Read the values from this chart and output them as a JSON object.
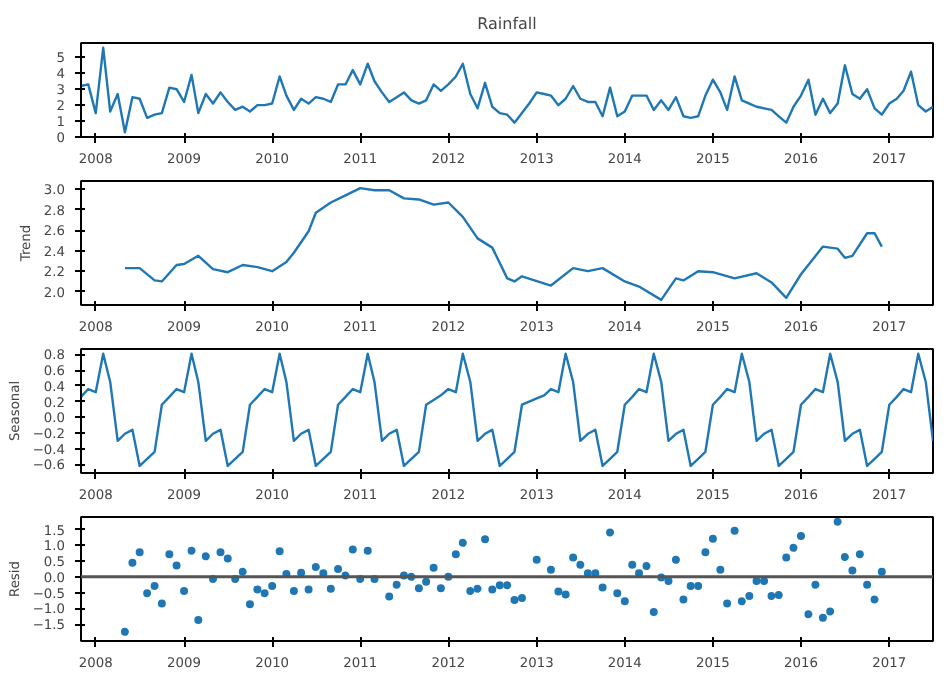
{
  "chart_data": [
    {
      "type": "line",
      "title": "Rainfall",
      "xlim": [
        "2007-11",
        "2017-07"
      ],
      "xticks": [
        "2008",
        "2009",
        "2010",
        "2011",
        "2012",
        "2013",
        "2014",
        "2015",
        "2016",
        "2017"
      ],
      "ylim": [
        0,
        5.9
      ],
      "yticks": [
        0,
        1,
        2,
        3,
        4,
        5
      ],
      "grid": false,
      "x": [
        "2007-11",
        "2007-12",
        "2008-01",
        "2008-02",
        "2008-03",
        "2008-04",
        "2008-05",
        "2008-06",
        "2008-07",
        "2008-08",
        "2008-09",
        "2008-10",
        "2008-11",
        "2008-12",
        "2009-01",
        "2009-02",
        "2009-03",
        "2009-04",
        "2009-05",
        "2009-06",
        "2009-07",
        "2009-08",
        "2009-09",
        "2009-10",
        "2009-11",
        "2009-12",
        "2010-01",
        "2010-02",
        "2010-03",
        "2010-04",
        "2010-05",
        "2010-06",
        "2010-07",
        "2010-08",
        "2010-09",
        "2010-10",
        "2010-11",
        "2010-12",
        "2011-01",
        "2011-02",
        "2011-03",
        "2011-04",
        "2011-05",
        "2011-06",
        "2011-07",
        "2011-08",
        "2011-09",
        "2011-10",
        "2011-11",
        "2011-12",
        "2012-01",
        "2012-02",
        "2012-03",
        "2012-04",
        "2012-05",
        "2012-06",
        "2012-07",
        "2012-08",
        "2012-09",
        "2012-10",
        "2012-11",
        "2012-12",
        "2013-01",
        "2013-02",
        "2013-03",
        "2013-04",
        "2013-05",
        "2013-06",
        "2013-07",
        "2013-08",
        "2013-09",
        "2013-10",
        "2013-11",
        "2013-12",
        "2014-01",
        "2014-02",
        "2014-03",
        "2014-04",
        "2014-05",
        "2014-06",
        "2014-07",
        "2014-08",
        "2014-09",
        "2014-10",
        "2014-11",
        "2014-12",
        "2015-01",
        "2015-02",
        "2015-03",
        "2015-04",
        "2015-05",
        "2015-06",
        "2015-07",
        "2015-08",
        "2015-09",
        "2015-10",
        "2015-11",
        "2015-12",
        "2016-01",
        "2016-02",
        "2016-03",
        "2016-04",
        "2016-05",
        "2016-06",
        "2016-07",
        "2016-08",
        "2016-09",
        "2016-10",
        "2016-11",
        "2016-12",
        "2017-01",
        "2017-02",
        "2017-03",
        "2017-04",
        "2017-05",
        "2017-06",
        "2017-07"
      ],
      "series": [
        {
          "color": "#1f77b4",
          "values": [
            3.2,
            3.3,
            1.5,
            5.6,
            1.6,
            2.7,
            0.3,
            2.5,
            2.4,
            1.2,
            1.4,
            1.5,
            3.1,
            3.0,
            2.2,
            3.9,
            1.5,
            2.7,
            2.1,
            2.8,
            2.2,
            1.7,
            1.9,
            1.6,
            2.0,
            2.0,
            2.1,
            3.8,
            2.6,
            1.7,
            2.4,
            2.1,
            2.5,
            2.4,
            2.2,
            3.3,
            3.3,
            4.2,
            3.3,
            4.6,
            3.5,
            2.8,
            2.2,
            2.5,
            2.8,
            2.3,
            2.1,
            2.3,
            3.3,
            2.9,
            3.3,
            3.8,
            4.6,
            2.7,
            1.8,
            3.4,
            1.9,
            1.5,
            1.4,
            0.9,
            1.5,
            2.1,
            2.8,
            2.7,
            2.6,
            2.0,
            2.4,
            3.2,
            2.4,
            2.2,
            2.2,
            1.3,
            3.1,
            1.3,
            1.6,
            2.6,
            2.6,
            2.6,
            1.7,
            2.3,
            1.7,
            2.5,
            1.3,
            1.2,
            1.3,
            2.6,
            3.6,
            2.8,
            1.7,
            3.8,
            2.3,
            2.1,
            1.9,
            1.8,
            1.7,
            1.3,
            0.9,
            1.9,
            2.6,
            3.6,
            1.4,
            2.4,
            1.5,
            2.1,
            4.5,
            2.7,
            2.4,
            3.0,
            1.8,
            1.4,
            2.1,
            2.4,
            2.9,
            4.1,
            2.0,
            1.6,
            1.9
          ]
        }
      ]
    },
    {
      "type": "line",
      "ylabel": "Trend",
      "xlim": [
        "2007-11",
        "2017-07"
      ],
      "xticks": [
        "2008",
        "2009",
        "2010",
        "2011",
        "2012",
        "2013",
        "2014",
        "2015",
        "2016",
        "2017"
      ],
      "ylim": [
        1.87,
        3.08
      ],
      "yticks": [
        {
          "value": 2.0,
          "label": "2.0"
        },
        {
          "value": 2.2,
          "label": "2.2"
        },
        {
          "value": 2.4,
          "label": "2.4"
        },
        {
          "value": 2.6,
          "label": "2.6"
        },
        {
          "value": 2.8,
          "label": "2.8"
        },
        {
          "value": 3.0,
          "label": "3.0"
        }
      ],
      "grid": false,
      "x": [
        "2008-05",
        "2008-07",
        "2008-09",
        "2008-10",
        "2008-12",
        "2009-01",
        "2009-03",
        "2009-05",
        "2009-07",
        "2009-09",
        "2009-11",
        "2010-01",
        "2010-03",
        "2010-04",
        "2010-06",
        "2010-07",
        "2010-09",
        "2010-11",
        "2011-01",
        "2011-03",
        "2011-05",
        "2011-07",
        "2011-09",
        "2011-11",
        "2012-01",
        "2012-03",
        "2012-05",
        "2012-07",
        "2012-09",
        "2012-10",
        "2012-11",
        "2013-03",
        "2013-06",
        "2013-08",
        "2013-10",
        "2014-01",
        "2014-03",
        "2014-06",
        "2014-08",
        "2014-09",
        "2014-11",
        "2015-01",
        "2015-04",
        "2015-07",
        "2015-09",
        "2015-11",
        "2016-01",
        "2016-04",
        "2016-06",
        "2016-07",
        "2016-08",
        "2016-10",
        "2016-11",
        "2016-12"
      ],
      "series": [
        {
          "color": "#1f77b4",
          "values": [
            2.23,
            2.23,
            2.11,
            2.1,
            2.26,
            2.27,
            2.35,
            2.22,
            2.19,
            2.26,
            2.24,
            2.2,
            2.29,
            2.38,
            2.59,
            2.77,
            2.87,
            2.94,
            3.01,
            2.99,
            2.99,
            2.91,
            2.9,
            2.85,
            2.87,
            2.73,
            2.52,
            2.43,
            2.13,
            2.1,
            2.15,
            2.06,
            2.23,
            2.2,
            2.23,
            2.1,
            2.05,
            1.92,
            2.13,
            2.11,
            2.2,
            2.19,
            2.13,
            2.18,
            2.09,
            1.94,
            2.17,
            2.44,
            2.42,
            2.33,
            2.35,
            2.57,
            2.57,
            2.44
          ]
        }
      ]
    },
    {
      "type": "line",
      "ylabel": "Seasonal",
      "xlim": [
        "2007-11",
        "2017-07"
      ],
      "xticks": [
        "2008",
        "2009",
        "2010",
        "2011",
        "2012",
        "2013",
        "2014",
        "2015",
        "2016",
        "2017"
      ],
      "ylim": [
        -0.71,
        0.87
      ],
      "yticks": [
        {
          "value": -0.6,
          "label": "−0.6"
        },
        {
          "value": -0.4,
          "label": "−0.4"
        },
        {
          "value": -0.2,
          "label": "−0.2"
        },
        {
          "value": 0.0,
          "label": "0.0"
        },
        {
          "value": 0.2,
          "label": "0.2"
        },
        {
          "value": 0.4,
          "label": "0.4"
        },
        {
          "value": 0.6,
          "label": "0.6"
        },
        {
          "value": 0.8,
          "label": "0.8"
        }
      ],
      "grid": false,
      "x": [
        "2007-11",
        "2007-12",
        "2008-01",
        "2008-02",
        "2008-03",
        "2008-04",
        "2008-05",
        "2008-06",
        "2008-07",
        "2008-08",
        "2008-09",
        "2008-10",
        "2008-11",
        "2008-12",
        "2009-01",
        "2009-02",
        "2009-03",
        "2009-04",
        "2009-05",
        "2009-06",
        "2009-07",
        "2009-08",
        "2009-09",
        "2009-10",
        "2009-11",
        "2009-12",
        "2010-01",
        "2010-02",
        "2010-03",
        "2010-04",
        "2010-05",
        "2010-06",
        "2010-07",
        "2010-08",
        "2010-09",
        "2010-10",
        "2010-11",
        "2010-12",
        "2011-01",
        "2011-02",
        "2011-03",
        "2011-04",
        "2011-05",
        "2011-06",
        "2011-07",
        "2011-08",
        "2011-09",
        "2011-10",
        "2011-11",
        "2011-12",
        "2012-01",
        "2012-02",
        "2012-03",
        "2012-04",
        "2012-05",
        "2012-06",
        "2012-07",
        "2012-08",
        "2012-09",
        "2012-10",
        "2012-11",
        "2012-12",
        "2013-01",
        "2013-02",
        "2013-03",
        "2013-04",
        "2013-05",
        "2013-06",
        "2013-07",
        "2013-08",
        "2013-09",
        "2013-10",
        "2013-11",
        "2013-12",
        "2014-01",
        "2014-02",
        "2014-03",
        "2014-04",
        "2014-05",
        "2014-06",
        "2014-07",
        "2014-08",
        "2014-09",
        "2014-10",
        "2014-11",
        "2014-12",
        "2015-01",
        "2015-02",
        "2015-03",
        "2015-04",
        "2015-05",
        "2015-06",
        "2015-07",
        "2015-08",
        "2015-09",
        "2015-10",
        "2015-11",
        "2015-12",
        "2016-01",
        "2016-02",
        "2016-03",
        "2016-04",
        "2016-05",
        "2016-06",
        "2016-07",
        "2016-08",
        "2016-09",
        "2016-10",
        "2016-11",
        "2016-12",
        "2017-01",
        "2017-02",
        "2017-03",
        "2017-04",
        "2017-05",
        "2017-06",
        "2017-07"
      ],
      "series": [
        {
          "color": "#1f77b4",
          "values": [
            0.26,
            0.36,
            0.32,
            0.81,
            0.45,
            -0.3,
            -0.21,
            -0.16,
            -0.62,
            -0.53,
            -0.44,
            0.16,
            0.26,
            0.36,
            0.32,
            0.81,
            0.45,
            -0.3,
            -0.21,
            -0.16,
            -0.62,
            -0.53,
            -0.44,
            0.16,
            0.26,
            0.36,
            0.32,
            0.81,
            0.45,
            -0.3,
            -0.21,
            -0.16,
            -0.62,
            -0.53,
            -0.44,
            0.16,
            0.26,
            0.36,
            0.32,
            0.81,
            0.45,
            -0.3,
            -0.21,
            -0.16,
            -0.62,
            -0.53,
            -0.44,
            0.16,
            0.22,
            0.28,
            0.36,
            0.32,
            0.81,
            0.45,
            -0.3,
            -0.21,
            -0.16,
            -0.62,
            -0.53,
            -0.44,
            0.16,
            0.2,
            0.24,
            0.28,
            0.36,
            0.32,
            0.81,
            0.45,
            -0.3,
            -0.21,
            -0.16,
            -0.62,
            -0.53,
            -0.44,
            0.16,
            0.26,
            0.36,
            0.32,
            0.81,
            0.45,
            -0.3,
            -0.21,
            -0.16,
            -0.62,
            -0.53,
            -0.44,
            0.16,
            0.26,
            0.36,
            0.32,
            0.81,
            0.45,
            -0.3,
            -0.21,
            -0.16,
            -0.62,
            -0.53,
            -0.44,
            0.16,
            0.26,
            0.36,
            0.32,
            0.81,
            0.45,
            -0.3,
            -0.21,
            -0.16,
            -0.62,
            -0.53,
            -0.44,
            0.16,
            0.26,
            0.36,
            0.32,
            0.81,
            0.45,
            -0.3
          ]
        }
      ]
    },
    {
      "type": "scatter",
      "ylabel": "Resid",
      "marker": "circle",
      "xlim": [
        "2007-11",
        "2017-07"
      ],
      "xticks": [
        "2008",
        "2009",
        "2010",
        "2011",
        "2012",
        "2013",
        "2014",
        "2015",
        "2016",
        "2017"
      ],
      "ylim": [
        -2.04,
        1.9
      ],
      "yticks": [
        {
          "value": -1.5,
          "label": "−1.5"
        },
        {
          "value": -1.0,
          "label": "−1.0"
        },
        {
          "value": -0.5,
          "label": "−0.5"
        },
        {
          "value": 0.0,
          "label": "0.0"
        },
        {
          "value": 0.5,
          "label": "0.5"
        },
        {
          "value": 1.0,
          "label": "1.0"
        },
        {
          "value": 1.5,
          "label": "1.5"
        }
      ],
      "grid": false,
      "ref_lines": [
        {
          "axis": "y",
          "value": 0,
          "color": "#555555"
        }
      ],
      "x": [
        "2008-05",
        "2008-06",
        "2008-07",
        "2008-08",
        "2008-09",
        "2008-10",
        "2008-11",
        "2008-12",
        "2009-01",
        "2009-02",
        "2009-03",
        "2009-04",
        "2009-05",
        "2009-06",
        "2009-07",
        "2009-08",
        "2009-09",
        "2009-10",
        "2009-11",
        "2009-12",
        "2010-01",
        "2010-02",
        "2010-03",
        "2010-04",
        "2010-05",
        "2010-06",
        "2010-07",
        "2010-08",
        "2010-09",
        "2010-10",
        "2010-11",
        "2010-12",
        "2011-01",
        "2011-02",
        "2011-03",
        "2011-05",
        "2011-06",
        "2011-07",
        "2011-08",
        "2011-09",
        "2011-10",
        "2011-11",
        "2011-12",
        "2012-01",
        "2012-02",
        "2012-03",
        "2012-04",
        "2012-05",
        "2012-06",
        "2012-07",
        "2012-08",
        "2012-09",
        "2012-10",
        "2012-11",
        "2013-01",
        "2013-03",
        "2013-04",
        "2013-05",
        "2013-06",
        "2013-07",
        "2013-08",
        "2013-09",
        "2013-10",
        "2013-11",
        "2013-12",
        "2014-01",
        "2014-02",
        "2014-03",
        "2014-04",
        "2014-05",
        "2014-06",
        "2014-07",
        "2014-08",
        "2014-09",
        "2014-10",
        "2014-11",
        "2014-12",
        "2015-01",
        "2015-02",
        "2015-03",
        "2015-04",
        "2015-05",
        "2015-06",
        "2015-07",
        "2015-08",
        "2015-09",
        "2015-10",
        "2015-11",
        "2015-12",
        "2016-01",
        "2016-02",
        "2016-03",
        "2016-04",
        "2016-05",
        "2016-06",
        "2016-07",
        "2016-08",
        "2016-09",
        "2016-10",
        "2016-11",
        "2016-12"
      ],
      "series": [
        {
          "color": "#1f77b4",
          "values": [
            -1.75,
            0.45,
            0.78,
            -0.52,
            -0.29,
            -0.85,
            0.72,
            0.36,
            -0.45,
            0.83,
            -1.37,
            0.65,
            -0.07,
            0.78,
            0.58,
            -0.07,
            0.16,
            -0.87,
            -0.4,
            -0.52,
            -0.29,
            0.81,
            0.09,
            -0.45,
            0.13,
            -0.4,
            0.31,
            0.11,
            -0.38,
            0.25,
            0.04,
            0.87,
            -0.07,
            0.83,
            -0.07,
            -0.63,
            -0.25,
            0.04,
            0.0,
            -0.36,
            -0.16,
            0.29,
            -0.36,
            0.0,
            0.72,
            1.08,
            -0.45,
            -0.38,
            1.19,
            -0.4,
            -0.27,
            -0.27,
            -0.74,
            -0.67,
            0.54,
            0.22,
            -0.47,
            -0.56,
            0.61,
            0.38,
            0.11,
            0.11,
            -0.34,
            1.41,
            -0.52,
            -0.78,
            0.38,
            0.11,
            0.34,
            -1.12,
            -0.02,
            -0.13,
            0.54,
            -0.72,
            -0.29,
            -0.29,
            0.78,
            1.21,
            0.22,
            -0.85,
            1.46,
            -0.78,
            -0.61,
            -0.13,
            -0.13,
            -0.61,
            -0.58,
            0.61,
            0.92,
            1.3,
            -1.19,
            -0.25,
            -1.3,
            -1.1,
            1.75,
            0.63,
            0.2,
            0.72,
            -0.25,
            -0.72,
            0.16
          ]
        }
      ]
    }
  ]
}
